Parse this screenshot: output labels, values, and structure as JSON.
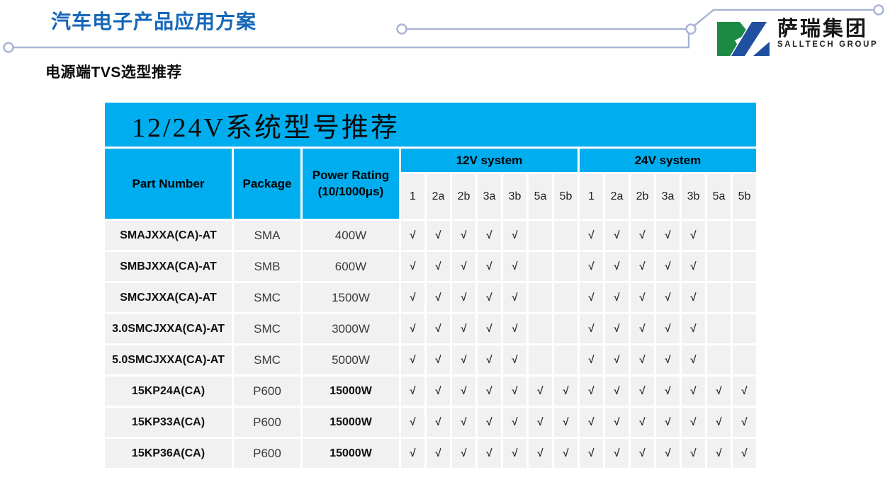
{
  "slide": {
    "title": "汽车电子产品应用方案",
    "subtitle": "电源端TVS选型推荐"
  },
  "logo": {
    "company_name": "萨瑞集团",
    "company_name_en": "SALLTECH GROUP"
  },
  "table": {
    "banner_title": "12/24V系统型号推荐",
    "headers": {
      "part_number": "Part Number",
      "package": "Package",
      "power_rating_line1": "Power Rating",
      "power_rating_line2": "(10/1000μs)",
      "group_12v": "12V system",
      "group_24v": "24V system",
      "subcolumns": [
        "1",
        "2a",
        "2b",
        "3a",
        "3b",
        "5a",
        "5b"
      ]
    },
    "check_glyph": "√",
    "rows": [
      {
        "part_number": "SMAJXXA(CA)-AT",
        "package": "SMA",
        "power_rating": "400W",
        "power_bold": false,
        "checks_12v": [
          1,
          1,
          1,
          1,
          1,
          0,
          0
        ],
        "checks_24v": [
          1,
          1,
          1,
          1,
          1,
          0,
          0
        ]
      },
      {
        "part_number": "SMBJXXA(CA)-AT",
        "package": "SMB",
        "power_rating": "600W",
        "power_bold": false,
        "checks_12v": [
          1,
          1,
          1,
          1,
          1,
          0,
          0
        ],
        "checks_24v": [
          1,
          1,
          1,
          1,
          1,
          0,
          0
        ]
      },
      {
        "part_number": "SMCJXXA(CA)-AT",
        "package": "SMC",
        "power_rating": "1500W",
        "power_bold": false,
        "checks_12v": [
          1,
          1,
          1,
          1,
          1,
          0,
          0
        ],
        "checks_24v": [
          1,
          1,
          1,
          1,
          1,
          0,
          0
        ]
      },
      {
        "part_number": "3.0SMCJXXA(CA)-AT",
        "package": "SMC",
        "power_rating": "3000W",
        "power_bold": false,
        "checks_12v": [
          1,
          1,
          1,
          1,
          1,
          0,
          0
        ],
        "checks_24v": [
          1,
          1,
          1,
          1,
          1,
          0,
          0
        ]
      },
      {
        "part_number": "5.0SMCJXXA(CA)-AT",
        "package": "SMC",
        "power_rating": "5000W",
        "power_bold": false,
        "checks_12v": [
          1,
          1,
          1,
          1,
          1,
          0,
          0
        ],
        "checks_24v": [
          1,
          1,
          1,
          1,
          1,
          0,
          0
        ]
      },
      {
        "part_number": "15KP24A(CA)",
        "package": "P600",
        "power_rating": "15000W",
        "power_bold": true,
        "checks_12v": [
          1,
          1,
          1,
          1,
          1,
          1,
          1
        ],
        "checks_24v": [
          1,
          1,
          1,
          1,
          1,
          1,
          1
        ]
      },
      {
        "part_number": "15KP33A(CA)",
        "package": "P600",
        "power_rating": "15000W",
        "power_bold": true,
        "checks_12v": [
          1,
          1,
          1,
          1,
          1,
          1,
          1
        ],
        "checks_24v": [
          1,
          1,
          1,
          1,
          1,
          1,
          1
        ]
      },
      {
        "part_number": "15KP36A(CA)",
        "package": "P600",
        "power_rating": "15000W",
        "power_bold": true,
        "checks_12v": [
          1,
          1,
          1,
          1,
          1,
          1,
          1
        ],
        "checks_24v": [
          1,
          1,
          1,
          1,
          1,
          1,
          1
        ]
      }
    ]
  },
  "colors": {
    "accent_cyan": "#00AEEF",
    "title_blue": "#1567B8",
    "cell_gray": "#F1F1F1",
    "circuit_line": "#AAB4D6",
    "logo_green": "#1D8A44",
    "logo_blue": "#1F4F9E"
  }
}
